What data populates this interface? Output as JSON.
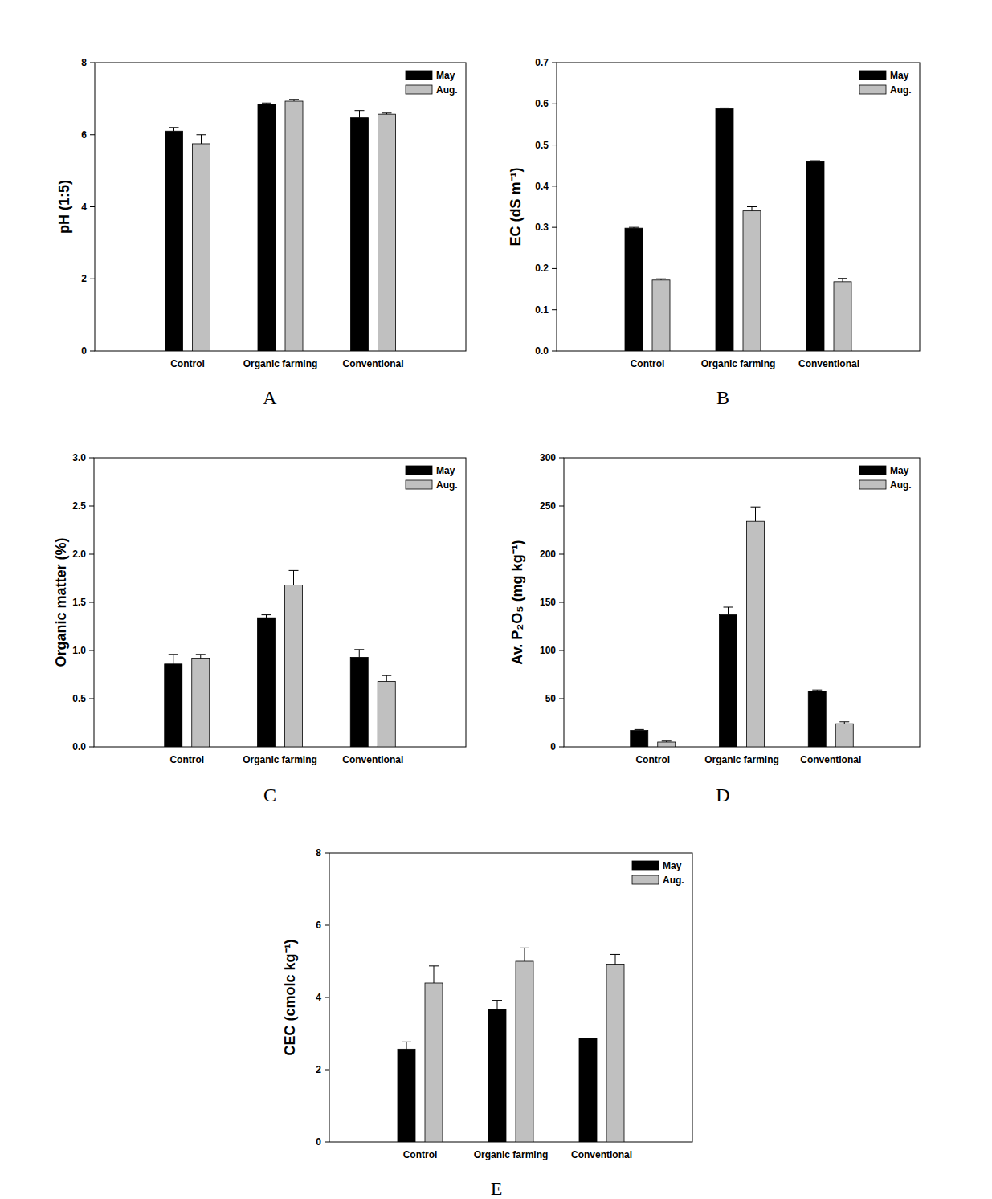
{
  "chart_data": [
    {
      "type": "bar",
      "title": "A",
      "y_label": "pH (1:5)",
      "categories": [
        "Control",
        "Organic farming",
        "Conventional"
      ],
      "series": [
        {
          "name": "May",
          "color": "#000000",
          "values": [
            6.1,
            6.85,
            6.47
          ],
          "errors": [
            0.1,
            0.03,
            0.2
          ]
        },
        {
          "name": "Aug.",
          "color": "#c0c0c0",
          "values": [
            5.75,
            6.93,
            6.57
          ],
          "errors": [
            0.25,
            0.05,
            0.03
          ]
        }
      ],
      "ylim": [
        0,
        8
      ],
      "yticks": [
        0,
        2,
        4,
        6,
        8
      ],
      "legend": "upper right",
      "grid": false
    },
    {
      "type": "bar",
      "title": "B",
      "y_label": "EC (dS m⁻¹)",
      "categories": [
        "Control",
        "Organic farming",
        "Conventional"
      ],
      "series": [
        {
          "name": "May",
          "color": "#000000",
          "values": [
            0.298,
            0.588,
            0.46
          ],
          "errors": [
            0.002,
            0.002,
            0.002
          ]
        },
        {
          "name": "Aug.",
          "color": "#c0c0c0",
          "values": [
            0.172,
            0.34,
            0.168
          ],
          "errors": [
            0.003,
            0.01,
            0.008
          ]
        }
      ],
      "ylim": [
        0,
        0.7
      ],
      "yticks": [
        {
          "value": 0,
          "label": "0.0"
        },
        0.1,
        0.2,
        0.3,
        0.4,
        0.5,
        0.6,
        0.7
      ],
      "legend": "upper right",
      "grid": false
    },
    {
      "type": "bar",
      "title": "C",
      "y_label": "Organic matter (%)",
      "categories": [
        "Control",
        "Organic farming",
        "Conventional"
      ],
      "series": [
        {
          "name": "May",
          "color": "#000000",
          "values": [
            0.86,
            1.34,
            0.93
          ],
          "errors": [
            0.1,
            0.03,
            0.08
          ]
        },
        {
          "name": "Aug.",
          "color": "#c0c0c0",
          "values": [
            0.92,
            1.68,
            0.68
          ],
          "errors": [
            0.04,
            0.15,
            0.06
          ]
        }
      ],
      "ylim": [
        0,
        3
      ],
      "yticks": [
        {
          "value": 0,
          "label": "0.0"
        },
        0.5,
        {
          "value": 1,
          "label": "1.0"
        },
        1.5,
        {
          "value": 2,
          "label": "2.0"
        },
        2.5,
        {
          "value": 3,
          "label": "3.0"
        }
      ],
      "legend": "upper right",
      "grid": false
    },
    {
      "type": "bar",
      "title": "D",
      "y_label": "Av. P₂O₅ (mg kg⁻¹)",
      "categories": [
        "Control",
        "Organic farming",
        "Conventional"
      ],
      "series": [
        {
          "name": "May",
          "color": "#000000",
          "values": [
            17,
            137,
            58
          ],
          "errors": [
            1,
            8,
            1
          ]
        },
        {
          "name": "Aug.",
          "color": "#c0c0c0",
          "values": [
            5,
            234,
            24
          ],
          "errors": [
            1,
            15,
            2
          ]
        }
      ],
      "ylim": [
        0,
        300
      ],
      "yticks": [
        0,
        50,
        100,
        150,
        200,
        250,
        300
      ],
      "legend": "upper right",
      "grid": false
    },
    {
      "type": "bar",
      "title": "E",
      "y_label": "CEC (cmolc kg⁻¹)",
      "categories": [
        "Control",
        "Organic farming",
        "Conventional"
      ],
      "series": [
        {
          "name": "May",
          "color": "#000000",
          "values": [
            2.57,
            3.67,
            2.87
          ],
          "errors": [
            0.2,
            0.25,
            0
          ]
        },
        {
          "name": "Aug.",
          "color": "#c0c0c0",
          "values": [
            4.4,
            5.0,
            4.92
          ],
          "errors": [
            0.47,
            0.37,
            0.27
          ]
        }
      ],
      "ylim": [
        0,
        8
      ],
      "yticks": [
        0,
        2,
        4,
        6,
        8
      ],
      "legend": "upper right",
      "grid": false
    }
  ]
}
